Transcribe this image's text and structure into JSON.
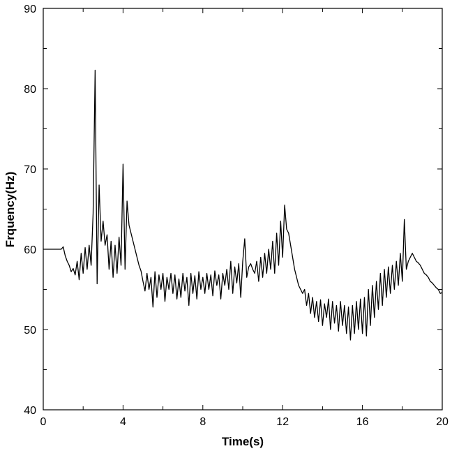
{
  "chart_data": {
    "type": "line",
    "xlabel": "Time(s)",
    "ylabel": "Frquency(Hz)",
    "xlim": [
      0,
      20
    ],
    "ylim": [
      40,
      90
    ],
    "xticks": [
      0,
      4,
      8,
      12,
      16,
      20
    ],
    "yticks": [
      40,
      50,
      60,
      70,
      80,
      90
    ],
    "xminorticks": [
      2,
      6,
      10,
      14,
      18
    ],
    "yminorticks": [
      45,
      55,
      65,
      75,
      85
    ],
    "grid": false,
    "series": [
      {
        "color": "#000000",
        "x": [
          0,
          0.1,
          0.2,
          0.3,
          0.4,
          0.5,
          0.6,
          0.7,
          0.8,
          0.9,
          1.0,
          1.1,
          1.2,
          1.3,
          1.4,
          1.5,
          1.6,
          1.7,
          1.8,
          1.9,
          2.0,
          2.1,
          2.2,
          2.3,
          2.4,
          2.5,
          2.6,
          2.7,
          2.8,
          2.9,
          3.0,
          3.1,
          3.2,
          3.3,
          3.4,
          3.5,
          3.6,
          3.7,
          3.8,
          3.9,
          4.0,
          4.1,
          4.2,
          4.3,
          4.4,
          4.5,
          4.6,
          4.7,
          4.8,
          4.9,
          5.0,
          5.1,
          5.2,
          5.3,
          5.4,
          5.5,
          5.6,
          5.7,
          5.8,
          5.9,
          6.0,
          6.1,
          6.2,
          6.3,
          6.4,
          6.5,
          6.6,
          6.7,
          6.8,
          6.9,
          7.0,
          7.1,
          7.2,
          7.3,
          7.4,
          7.5,
          7.6,
          7.7,
          7.8,
          7.9,
          8.0,
          8.1,
          8.2,
          8.3,
          8.4,
          8.5,
          8.6,
          8.7,
          8.8,
          8.9,
          9.0,
          9.1,
          9.2,
          9.3,
          9.4,
          9.5,
          9.6,
          9.7,
          9.8,
          9.9,
          10.0,
          10.1,
          10.2,
          10.3,
          10.4,
          10.5,
          10.6,
          10.7,
          10.8,
          10.9,
          11.0,
          11.1,
          11.2,
          11.3,
          11.4,
          11.5,
          11.6,
          11.7,
          11.8,
          11.9,
          12.0,
          12.1,
          12.2,
          12.3,
          12.4,
          12.5,
          12.6,
          12.7,
          12.8,
          12.9,
          13.0,
          13.1,
          13.2,
          13.3,
          13.4,
          13.5,
          13.6,
          13.7,
          13.8,
          13.9,
          14.0,
          14.1,
          14.2,
          14.3,
          14.4,
          14.5,
          14.6,
          14.7,
          14.8,
          14.9,
          15.0,
          15.1,
          15.2,
          15.3,
          15.4,
          15.5,
          15.6,
          15.7,
          15.8,
          15.9,
          16.0,
          16.1,
          16.2,
          16.3,
          16.4,
          16.5,
          16.6,
          16.7,
          16.8,
          16.9,
          17.0,
          17.1,
          17.2,
          17.3,
          17.4,
          17.5,
          17.6,
          17.7,
          17.8,
          17.9,
          18.0,
          18.1,
          18.2,
          18.3,
          18.4,
          18.5,
          18.6,
          18.7,
          18.8,
          18.9,
          19.0,
          19.1,
          19.2,
          19.3,
          19.4,
          19.5,
          19.6,
          19.7,
          19.8,
          19.9,
          20.0
        ],
        "values": [
          60,
          60,
          60,
          60,
          60,
          60,
          60,
          60,
          60,
          60,
          60.3,
          59.2,
          58.5,
          58,
          57.2,
          57.6,
          56.8,
          58.5,
          56.2,
          59.5,
          57,
          60.2,
          57.5,
          60.5,
          58,
          64.5,
          82.3,
          55.7,
          68,
          61,
          63.5,
          60.5,
          61.8,
          57.5,
          61,
          56.5,
          60.5,
          57,
          61.5,
          58,
          70.6,
          57.5,
          66,
          63,
          62,
          61,
          60,
          59,
          58,
          57.3,
          56,
          54.8,
          57,
          55,
          56.5,
          52.8,
          57.2,
          54,
          56.8,
          55,
          57,
          53.5,
          56.5,
          55,
          57,
          54.5,
          56.8,
          53.8,
          56.3,
          54,
          57,
          54.8,
          56.5,
          53,
          57,
          54.5,
          56.7,
          53.8,
          57.2,
          55,
          56.5,
          54.5,
          57,
          55,
          56.8,
          54.2,
          57.3,
          55.5,
          56.8,
          53.8,
          57,
          55.5,
          57.5,
          55,
          58.5,
          54.5,
          57.8,
          55.8,
          58.2,
          54,
          58.5,
          61.3,
          56.5,
          57.8,
          58.2,
          57.5,
          57,
          58.5,
          56,
          59,
          56.5,
          59.5,
          57,
          60,
          57.5,
          61,
          57,
          62,
          58,
          63.5,
          59,
          65.5,
          62.5,
          62,
          60.5,
          59,
          57.5,
          56.5,
          55.5,
          55,
          54.5,
          55,
          53,
          54.5,
          52,
          54,
          51.5,
          53.5,
          51,
          53.7,
          50.5,
          53.2,
          51.5,
          53.8,
          50,
          53.5,
          50.8,
          53,
          49.8,
          53.5,
          50.5,
          53,
          49.5,
          52.8,
          48.7,
          53,
          49.5,
          53.5,
          50,
          53.8,
          49.5,
          54,
          49.2,
          55,
          50.5,
          55.5,
          51.5,
          56,
          52.5,
          57,
          53,
          57.5,
          54,
          57.8,
          54.5,
          58,
          55,
          58.5,
          55.5,
          59.5,
          56,
          63.7,
          57.5,
          58.5,
          59,
          59.5,
          59,
          58.5,
          58.3,
          58,
          57.5,
          57,
          56.8,
          56.5,
          56,
          55.8,
          55.5,
          55.2,
          55,
          54.5,
          54.6
        ]
      }
    ]
  }
}
